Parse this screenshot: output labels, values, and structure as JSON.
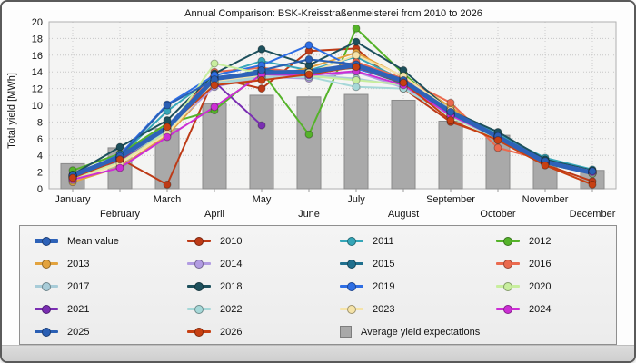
{
  "chart_data": {
    "type": "line",
    "title": "Annual Comparison: BSK-Kreisstraßenmeisterei from 2010 to 2026",
    "ylabel": "Total yield [MWh]",
    "ylim": [
      0,
      20
    ],
    "ytick_step": 2,
    "grid": "dotted",
    "legend_position": "bottom",
    "legend_columns": 4,
    "categories": [
      "January",
      "February",
      "March",
      "April",
      "May",
      "June",
      "July",
      "August",
      "September",
      "October",
      "November",
      "December"
    ],
    "bars": {
      "name": "Average yield expectations",
      "color": "#a9a9a9",
      "border": "#8a8a8a",
      "values": [
        3.0,
        4.9,
        7.2,
        10.2,
        11.2,
        11.0,
        11.3,
        10.6,
        8.1,
        6.4,
        3.4,
        2.2
      ]
    },
    "series": [
      {
        "name": "Mean value",
        "color": "#2e62b8",
        "thick": true,
        "values": [
          1.6,
          3.8,
          7.3,
          13.2,
          13.9,
          14.0,
          14.8,
          12.9,
          9.2,
          6.2,
          3.2,
          1.9
        ]
      },
      {
        "name": "2010",
        "color": "#bd3a16",
        "values": [
          1.4,
          3.6,
          0.5,
          13.3,
          12.0,
          16.5,
          16.8,
          12.0,
          8.0,
          6.0,
          2.9,
          0.9
        ]
      },
      {
        "name": "2011",
        "color": "#35a6b8",
        "values": [
          1.5,
          3.9,
          9.3,
          13.5,
          15.3,
          14.2,
          15.8,
          13.0,
          9.5,
          6.5,
          3.7,
          2.3
        ]
      },
      {
        "name": "2012",
        "color": "#55b32a",
        "values": [
          2.2,
          4.2,
          7.8,
          9.4,
          14.0,
          6.5,
          19.2,
          13.8,
          9.0,
          6.1,
          3.0,
          1.8
        ]
      },
      {
        "name": "2013",
        "color": "#e3a33e",
        "values": [
          0.8,
          2.6,
          6.4,
          12.5,
          13.2,
          14.5,
          16.3,
          13.4,
          9.8,
          5.9,
          3.0,
          1.9
        ]
      },
      {
        "name": "2014",
        "color": "#b29ce2",
        "values": [
          1.3,
          3.7,
          7.0,
          12.2,
          13.4,
          13.2,
          14.0,
          12.1,
          8.8,
          6.0,
          3.1,
          1.9
        ]
      },
      {
        "name": "2015",
        "color": "#20708e",
        "values": [
          1.6,
          4.0,
          7.5,
          13.0,
          14.3,
          14.0,
          14.5,
          12.6,
          9.0,
          6.3,
          3.3,
          2.1
        ]
      },
      {
        "name": "2016",
        "color": "#eb6a4e",
        "values": [
          1.5,
          3.8,
          7.2,
          14.0,
          14.5,
          13.8,
          15.2,
          13.2,
          10.3,
          4.9,
          3.4,
          2.0
        ]
      },
      {
        "name": "2017",
        "color": "#a8ccd8",
        "values": [
          1.4,
          3.5,
          6.8,
          12.8,
          13.5,
          13.6,
          13.2,
          12.3,
          8.9,
          6.1,
          3.1,
          1.9
        ]
      },
      {
        "name": "2018",
        "color": "#1d505c",
        "values": [
          1.7,
          5.0,
          8.2,
          13.8,
          16.7,
          14.8,
          17.6,
          14.2,
          9.3,
          6.8,
          3.5,
          2.2
        ]
      },
      {
        "name": "2019",
        "color": "#2e6ee4",
        "values": [
          1.6,
          4.1,
          10.1,
          13.6,
          14.8,
          17.2,
          14.4,
          12.8,
          9.1,
          6.2,
          3.2,
          2.0
        ]
      },
      {
        "name": "2020",
        "color": "#c8ee9e",
        "values": [
          1.2,
          3.2,
          6.9,
          15.0,
          13.8,
          13.5,
          13.0,
          12.5,
          8.6,
          6.0,
          3.0,
          1.8
        ]
      },
      {
        "name": "2021",
        "color": "#7a2eb2",
        "values": [
          1.5,
          3.4,
          7.1,
          12.8,
          7.6,
          null,
          null,
          null,
          null,
          null,
          null,
          null
        ]
      },
      {
        "name": "2022",
        "color": "#a6d8d8",
        "values": [
          1.4,
          3.6,
          7.0,
          12.6,
          13.3,
          13.4,
          12.2,
          12.0,
          8.7,
          6.0,
          3.1,
          1.9
        ]
      },
      {
        "name": "2023",
        "color": "#f5e3a8",
        "values": [
          1.0,
          3.0,
          6.6,
          12.9,
          13.6,
          13.9,
          16.0,
          13.5,
          9.4,
          6.2,
          3.3,
          2.1
        ]
      },
      {
        "name": "2024",
        "color": "#cc2fd4",
        "values": [
          1.1,
          2.5,
          6.2,
          9.8,
          13.7,
          13.6,
          14.1,
          12.4,
          8.8,
          6.1,
          3.2,
          2.0
        ]
      },
      {
        "name": "2025",
        "color": "#2a5fb4",
        "values": [
          1.6,
          3.9,
          10.0,
          13.1,
          14.2,
          15.5,
          14.9,
          13.0,
          9.2,
          6.3,
          3.3,
          2.1
        ]
      },
      {
        "name": "2026",
        "color": "#c74012",
        "values": [
          1.3,
          3.5,
          7.4,
          12.4,
          13.0,
          13.7,
          14.6,
          12.7,
          8.2,
          5.8,
          2.8,
          0.5
        ]
      }
    ]
  }
}
